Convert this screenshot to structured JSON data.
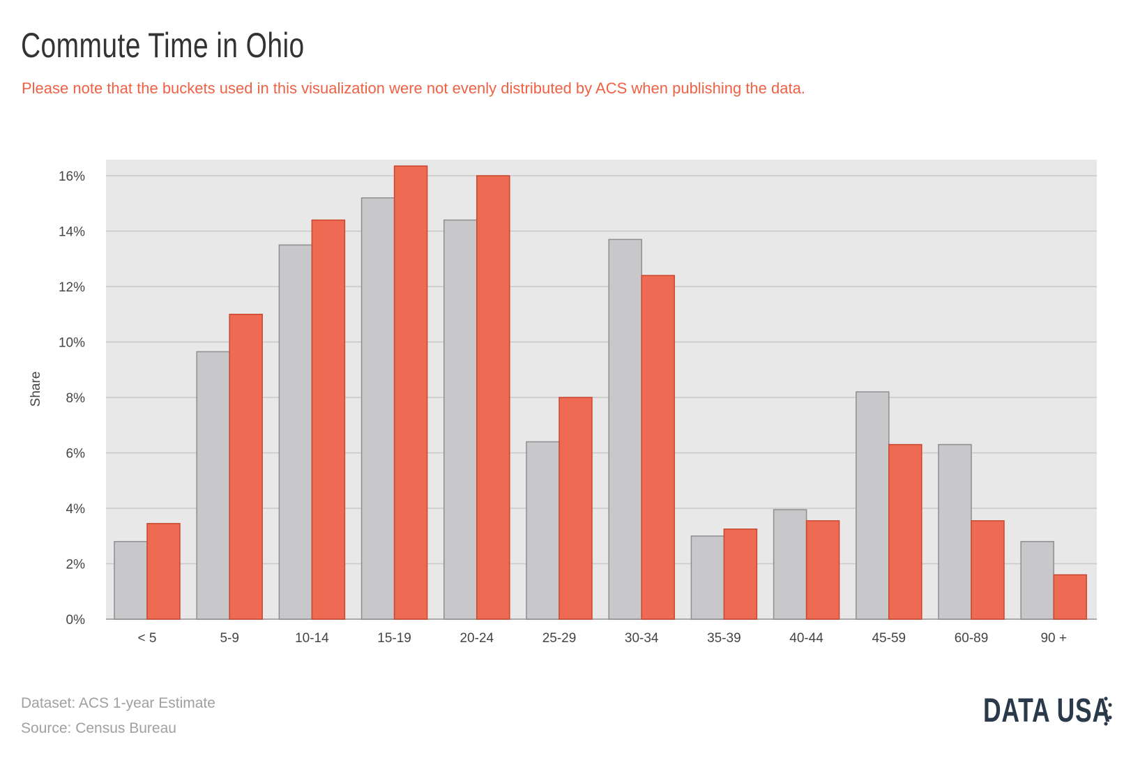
{
  "header": {
    "title": "Commute Time in Ohio",
    "subtitle": "Please note that the buckets used in this visualization were not evenly distributed by ACS when publishing the data."
  },
  "footer": {
    "dataset": "Dataset: ACS 1-year Estimate",
    "source": "Source: Census Bureau",
    "logo_text": "DATA USA",
    "logo_icon": "star-dots-icon"
  },
  "colors": {
    "background": "#e8e8e8",
    "gridline": "#c8c8c8",
    "grey_bar": "#c8c8ca",
    "grey_bar_stroke": "#8e8e90",
    "red_bar": "#ef6a52",
    "red_bar_stroke": "#c9462f",
    "axis_text": "#444444"
  },
  "chart_data": {
    "type": "bar",
    "title": "Commute Time in Ohio",
    "xlabel": "",
    "ylabel": "Share",
    "ylim": [
      0,
      0.165
    ],
    "yticks": [
      "0%",
      "2%",
      "4%",
      "6%",
      "8%",
      "10%",
      "12%",
      "14%",
      "16%"
    ],
    "ytick_values": [
      0,
      0.02,
      0.04,
      0.06,
      0.08,
      0.1,
      0.12,
      0.14,
      0.16
    ],
    "grid": true,
    "legend": "none",
    "categories": [
      "< 5",
      "5-9",
      "10-14",
      "15-19",
      "20-24",
      "25-29",
      "30-34",
      "35-39",
      "40-44",
      "45-59",
      "60-89",
      "90 +"
    ],
    "series": [
      {
        "color": "#c8c8ca",
        "values": [
          0.028,
          0.0965,
          0.135,
          0.152,
          0.144,
          0.064,
          0.137,
          0.03,
          0.0395,
          0.082,
          0.063,
          0.028
        ]
      },
      {
        "color": "#ef6a52",
        "values": [
          0.0345,
          0.11,
          0.144,
          0.1635,
          0.16,
          0.08,
          0.124,
          0.0325,
          0.0355,
          0.063,
          0.0355,
          0.016
        ]
      }
    ]
  }
}
